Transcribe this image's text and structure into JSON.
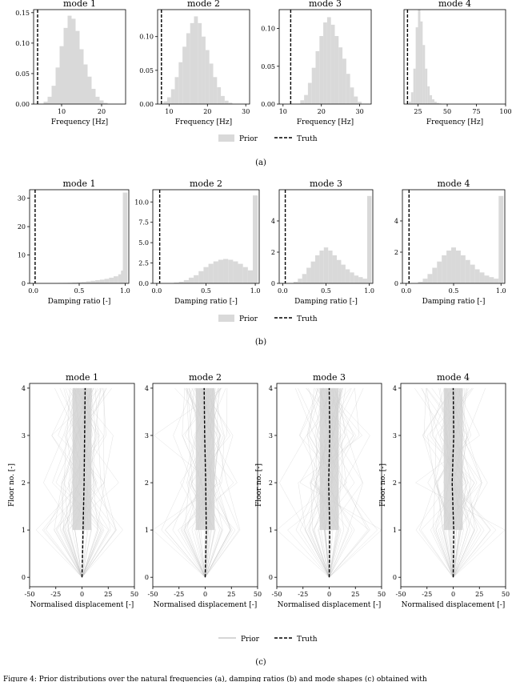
{
  "colors": {
    "prior": "#d9d9d9",
    "prior_line": "#bdbdbd",
    "truth": "#000000",
    "axis": "#000000"
  },
  "chart_data": [
    {
      "type": "bar",
      "panel": "a",
      "title": "mode 1",
      "xlabel": "Frequency [Hz]",
      "xlim": [
        3,
        26
      ],
      "ylim": [
        0,
        0.155
      ],
      "xticks": [
        10,
        20
      ],
      "yticks": [
        "0.00",
        "0.05",
        "0.10",
        "0.15"
      ],
      "truth_x": 4,
      "series": [
        {
          "name": "Prior",
          "x": [
            6,
            7,
            8,
            9,
            10,
            11,
            12,
            13,
            14,
            15,
            16,
            17,
            18,
            19,
            20,
            21
          ],
          "values": [
            0.004,
            0.012,
            0.03,
            0.06,
            0.095,
            0.125,
            0.145,
            0.14,
            0.12,
            0.09,
            0.065,
            0.045,
            0.025,
            0.012,
            0.006,
            0.002
          ]
        }
      ]
    },
    {
      "type": "bar",
      "panel": "a",
      "title": "mode 2",
      "xlabel": "Frequency [Hz]",
      "xlim": [
        7,
        31
      ],
      "ylim": [
        0,
        0.14
      ],
      "xticks": [
        10,
        20,
        30
      ],
      "yticks": [
        "0.00",
        "0.05",
        "0.10"
      ],
      "truth_x": 8,
      "series": [
        {
          "name": "Prior",
          "x": [
            9,
            10,
            11,
            12,
            13,
            14,
            15,
            16,
            17,
            18,
            19,
            20,
            21,
            22,
            23,
            24,
            25,
            26
          ],
          "values": [
            0.004,
            0.01,
            0.022,
            0.04,
            0.062,
            0.085,
            0.105,
            0.12,
            0.13,
            0.12,
            0.1,
            0.08,
            0.06,
            0.04,
            0.025,
            0.012,
            0.005,
            0.002
          ]
        }
      ]
    },
    {
      "type": "bar",
      "panel": "a",
      "title": "mode 3",
      "xlabel": "Frequency [Hz]",
      "xlim": [
        9,
        33
      ],
      "ylim": [
        0,
        0.125
      ],
      "xticks": [
        10,
        20,
        30
      ],
      "yticks": [
        "0.00",
        "0.05",
        "0.10"
      ],
      "truth_x": 12,
      "series": [
        {
          "name": "Prior",
          "x": [
            15,
            16,
            17,
            18,
            19,
            20,
            21,
            22,
            23,
            24,
            25,
            26,
            27,
            28,
            29,
            30
          ],
          "values": [
            0.005,
            0.012,
            0.028,
            0.048,
            0.07,
            0.09,
            0.108,
            0.115,
            0.105,
            0.09,
            0.075,
            0.06,
            0.04,
            0.022,
            0.01,
            0.003
          ]
        }
      ]
    },
    {
      "type": "bar",
      "panel": "a",
      "title": "mode 4",
      "xlabel": "Frequency [Hz]",
      "xlim": [
        13,
        100
      ],
      "ylim": [
        0,
        0.16
      ],
      "xticks": [
        25,
        50,
        75,
        100
      ],
      "yticks": [],
      "truth_x": 16,
      "series": [
        {
          "name": "Prior",
          "x": [
            18,
            20,
            22,
            24,
            26,
            28,
            30,
            32,
            34,
            36,
            38,
            40,
            42,
            44
          ],
          "values": [
            0.004,
            0.02,
            0.06,
            0.13,
            0.16,
            0.14,
            0.1,
            0.06,
            0.03,
            0.015,
            0.008,
            0.004,
            0.002,
            0.001
          ]
        }
      ]
    },
    {
      "type": "bar",
      "panel": "b",
      "title": "mode 1",
      "xlabel": "Damping ratio [-]",
      "xlim": [
        -0.04,
        1.04
      ],
      "ylim": [
        0,
        33
      ],
      "xticks": [
        "0.0",
        "0.5",
        "1.0"
      ],
      "yticks": [
        0,
        10,
        20,
        30
      ],
      "truth_x": 0.02,
      "series": [
        {
          "name": "Prior",
          "x": [
            0.3,
            0.35,
            0.4,
            0.45,
            0.5,
            0.55,
            0.6,
            0.65,
            0.7,
            0.75,
            0.8,
            0.85,
            0.9,
            0.95,
            0.98,
            1.0
          ],
          "values": [
            0.1,
            0.15,
            0.2,
            0.3,
            0.4,
            0.5,
            0.7,
            0.9,
            1.1,
            1.3,
            1.6,
            2.0,
            2.5,
            3.2,
            4.5,
            32
          ]
        }
      ]
    },
    {
      "type": "bar",
      "panel": "b",
      "title": "mode 2",
      "xlabel": "Damping ratio [-]",
      "xlim": [
        -0.04,
        1.04
      ],
      "ylim": [
        0,
        11.5
      ],
      "xticks": [
        "0.0",
        "0.5",
        "1.0"
      ],
      "yticks": [
        "0.0",
        "2.5",
        "5.0",
        "7.5",
        "10.0"
      ],
      "truth_x": 0.03,
      "series": [
        {
          "name": "Prior",
          "x": [
            0.2,
            0.25,
            0.3,
            0.35,
            0.4,
            0.45,
            0.5,
            0.55,
            0.6,
            0.65,
            0.7,
            0.75,
            0.8,
            0.85,
            0.9,
            0.95,
            1.0
          ],
          "values": [
            0.1,
            0.2,
            0.4,
            0.7,
            1.0,
            1.5,
            2.0,
            2.4,
            2.7,
            2.9,
            3.0,
            2.9,
            2.7,
            2.4,
            2.0,
            1.6,
            10.8
          ]
        }
      ]
    },
    {
      "type": "bar",
      "panel": "b",
      "title": "mode 3",
      "xlabel": "Damping ratio [-]",
      "xlim": [
        -0.04,
        1.04
      ],
      "ylim": [
        0,
        6.0
      ],
      "xticks": [
        "0.0",
        "0.5",
        "1.0"
      ],
      "yticks": [
        0,
        2,
        4
      ],
      "truth_x": 0.03,
      "series": [
        {
          "name": "Prior",
          "x": [
            0.15,
            0.2,
            0.25,
            0.3,
            0.35,
            0.4,
            0.45,
            0.5,
            0.55,
            0.6,
            0.65,
            0.7,
            0.75,
            0.8,
            0.85,
            0.9,
            0.95,
            1.0
          ],
          "values": [
            0.1,
            0.3,
            0.6,
            1.0,
            1.4,
            1.8,
            2.1,
            2.3,
            2.1,
            1.8,
            1.5,
            1.2,
            0.9,
            0.7,
            0.5,
            0.4,
            0.3,
            5.6
          ]
        }
      ]
    },
    {
      "type": "bar",
      "panel": "b",
      "title": "mode 4",
      "xlabel": "Damping ratio [-]",
      "xlim": [
        -0.04,
        1.04
      ],
      "ylim": [
        0,
        6.0
      ],
      "xticks": [
        "0.0",
        "0.5",
        "1.0"
      ],
      "yticks": [
        0,
        2,
        4
      ],
      "truth_x": 0.03,
      "series": [
        {
          "name": "Prior",
          "x": [
            0.15,
            0.2,
            0.25,
            0.3,
            0.35,
            0.4,
            0.45,
            0.5,
            0.55,
            0.6,
            0.65,
            0.7,
            0.75,
            0.8,
            0.85,
            0.9,
            0.95,
            1.0
          ],
          "values": [
            0.1,
            0.3,
            0.6,
            1.0,
            1.4,
            1.8,
            2.1,
            2.3,
            2.1,
            1.8,
            1.5,
            1.2,
            0.9,
            0.7,
            0.5,
            0.4,
            0.3,
            5.6
          ]
        }
      ]
    },
    {
      "type": "line",
      "panel": "c",
      "title": "mode 1",
      "xlabel": "Normalised displacement [-]",
      "ylabel": "Floor no. [-]",
      "xlim": [
        -50,
        50
      ],
      "ylim": [
        -0.2,
        4.1
      ],
      "xticks": [
        -50,
        -25,
        0,
        25,
        50
      ],
      "yticks": [
        0,
        1,
        2,
        3,
        4
      ],
      "truth": {
        "floors": [
          0,
          1,
          2,
          3,
          4
        ],
        "x": [
          0,
          1,
          2,
          2.5,
          3
        ]
      }
    },
    {
      "type": "line",
      "panel": "c",
      "title": "mode 2",
      "xlabel": "Normalised displacement [-]",
      "ylabel": "",
      "xlim": [
        -50,
        50
      ],
      "ylim": [
        -0.2,
        4.1
      ],
      "xticks": [
        -50,
        -25,
        0,
        25,
        50
      ],
      "yticks": [
        0,
        1,
        2,
        3,
        4
      ],
      "truth": {
        "floors": [
          0,
          1,
          2,
          3,
          4
        ],
        "x": [
          0,
          1,
          0.5,
          -0.5,
          -1
        ]
      }
    },
    {
      "type": "line",
      "panel": "c",
      "title": "mode 3",
      "xlabel": "Normalised displacement [-]",
      "ylabel": "Floor no. [-]",
      "xlim": [
        -50,
        50
      ],
      "ylim": [
        -0.2,
        4.1
      ],
      "xticks": [
        -50,
        -25,
        0,
        25,
        50
      ],
      "yticks": [
        0,
        1,
        2,
        3,
        4
      ],
      "truth": {
        "floors": [
          0,
          1,
          2,
          3,
          4
        ],
        "x": [
          0,
          0.5,
          -0.5,
          0.5,
          0
        ]
      }
    },
    {
      "type": "line",
      "panel": "c",
      "title": "mode 4",
      "xlabel": "Normalised displacement [-]",
      "ylabel": "Floor no. [-]",
      "xlim": [
        -50,
        50
      ],
      "ylim": [
        -0.2,
        4.1
      ],
      "xticks": [
        -50,
        -25,
        0,
        25,
        50
      ],
      "yticks": [
        0,
        1,
        2,
        3,
        4
      ],
      "truth": {
        "floors": [
          0,
          1,
          2,
          3,
          4
        ],
        "x": [
          0,
          0.5,
          -1,
          0.5,
          0
        ]
      }
    }
  ],
  "legend": {
    "prior_label": "Prior",
    "truth_label": "Truth"
  },
  "panel_labels": {
    "a": "(a)",
    "b": "(b)",
    "c": "(c)"
  },
  "caption": "Figure 4: Prior distributions over the natural frequencies (a), damping ratios (b) and mode shapes (c) obtained with"
}
